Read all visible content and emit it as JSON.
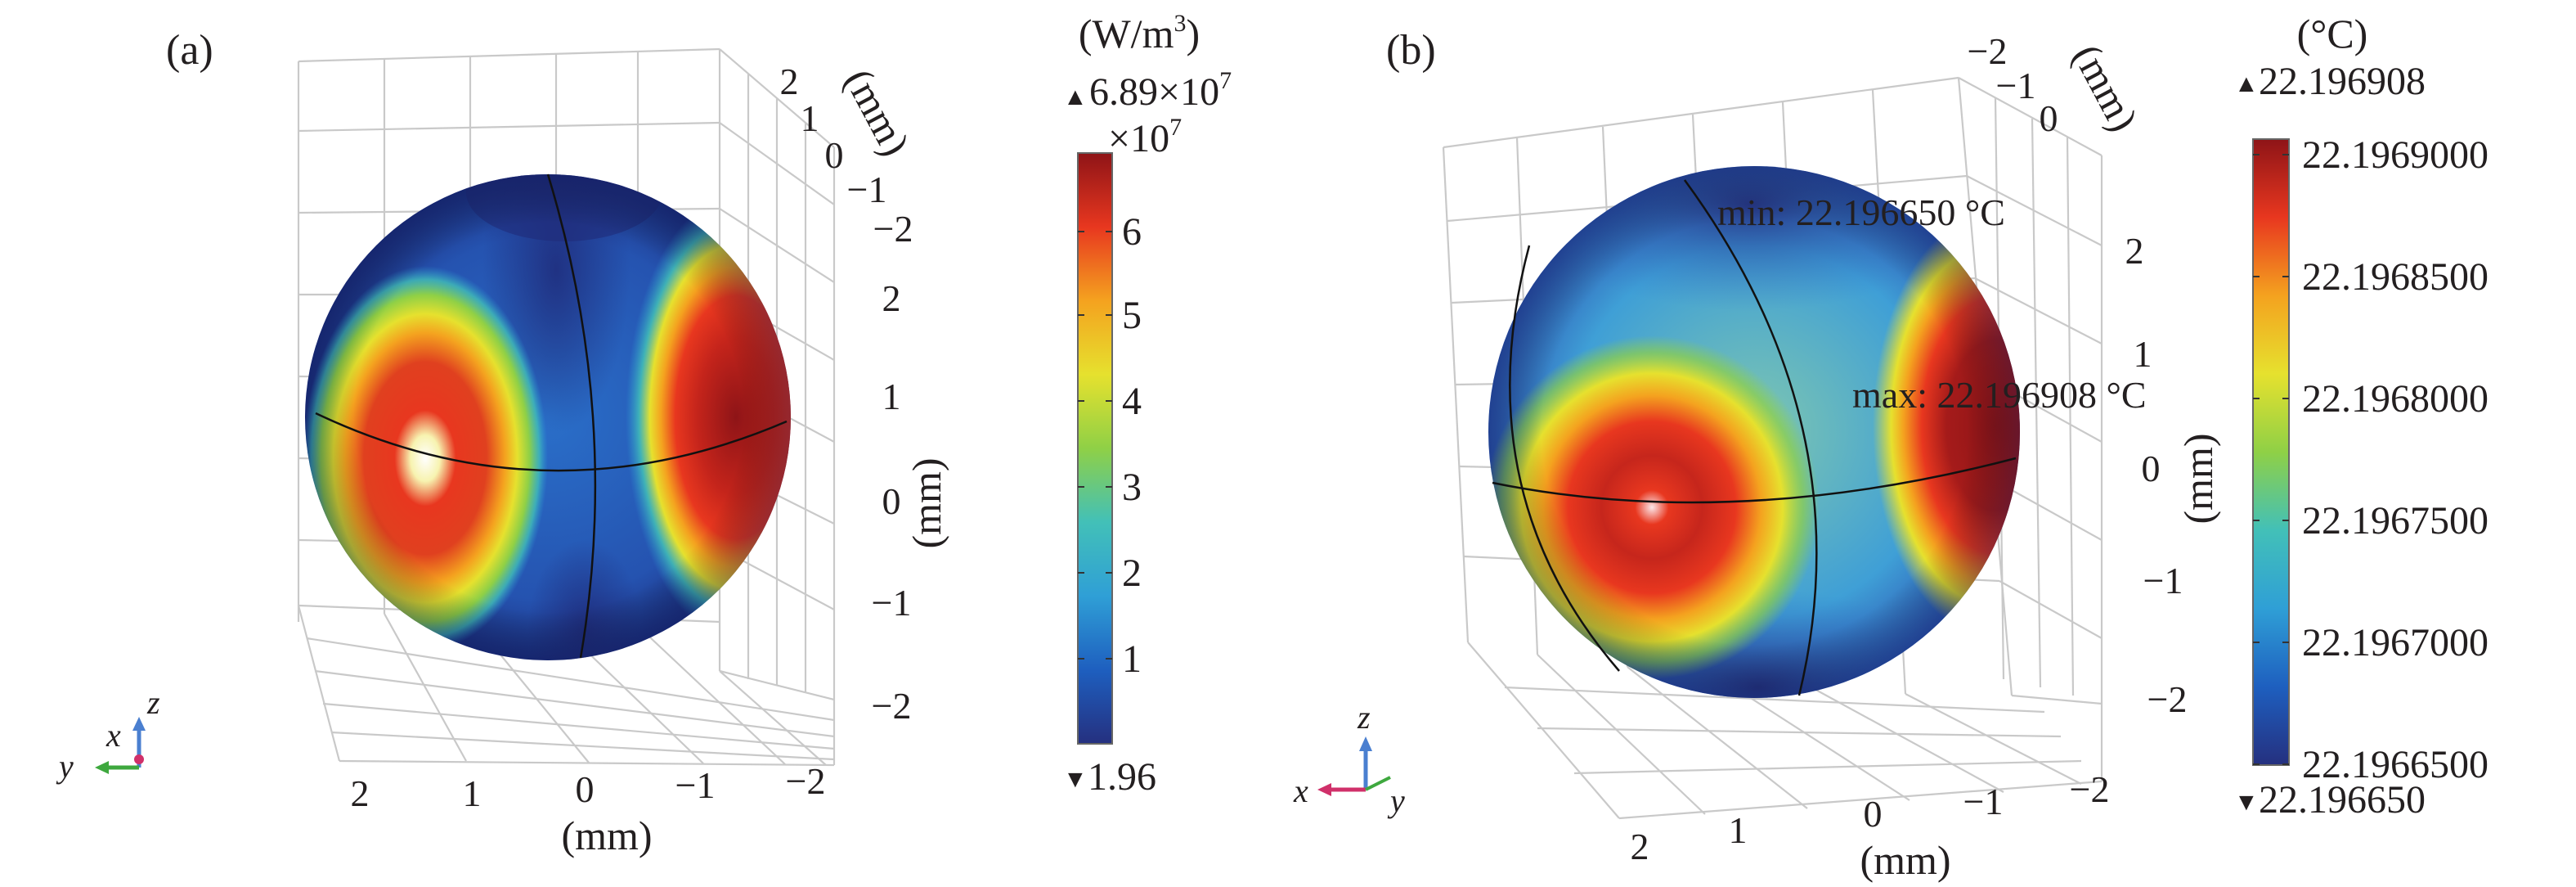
{
  "colormap": [
    "#25307f",
    "#1e5fbf",
    "#2f9fd6",
    "#42c0b8",
    "#8fd046",
    "#e6e12e",
    "#f4a21f",
    "#e8371f",
    "#8e1417"
  ],
  "panel_a": {
    "label": "(a)",
    "x_ticks": [
      "2",
      "1",
      "0",
      "−1",
      "−2"
    ],
    "x_unit": "(mm)",
    "y_ticks": [
      "2",
      "1",
      "0",
      "−1",
      "−2"
    ],
    "y_unit": "(mm)",
    "z_ticks": [
      "2",
      "1",
      "0",
      "−1",
      "−2"
    ],
    "z_unit": "(mm)",
    "triad": {
      "z": "z",
      "x": "x",
      "y": "y"
    },
    "colorbar": {
      "unit_prefix": "(W/m",
      "unit_sup": "3",
      "unit_suffix": ")",
      "max_marker": "▲",
      "max_value": "6.89×10",
      "max_exp": "7",
      "multiplier": "×10",
      "multiplier_exp": "7",
      "ticks": [
        "6",
        "5",
        "4",
        "3",
        "2",
        "1"
      ],
      "min_marker": "▼",
      "min_value": "1.96"
    }
  },
  "panel_b": {
    "label": "(b)",
    "x_ticks": [
      "2",
      "1",
      "0",
      "−1",
      "−2"
    ],
    "x_unit": "(mm)",
    "top_ticks": [
      "−2",
      "−1",
      "0"
    ],
    "top_unit": "(mm)",
    "z_ticks": [
      "2",
      "1",
      "0",
      "−1",
      "−2"
    ],
    "z_unit": "(mm)",
    "min_annotation": "min: 22.196650 °C",
    "max_annotation": "max: 22.196908 °C",
    "triad": {
      "z": "z",
      "x": "x",
      "y": "y"
    },
    "colorbar": {
      "unit": "(°C)",
      "max_marker": "▲",
      "max_value": "22.196908",
      "ticks": [
        "22.1969000",
        "22.1968500",
        "22.1968000",
        "22.1967500",
        "22.1967000",
        "22.1966500"
      ],
      "min_marker": "▼",
      "min_value": "22.196650"
    }
  }
}
